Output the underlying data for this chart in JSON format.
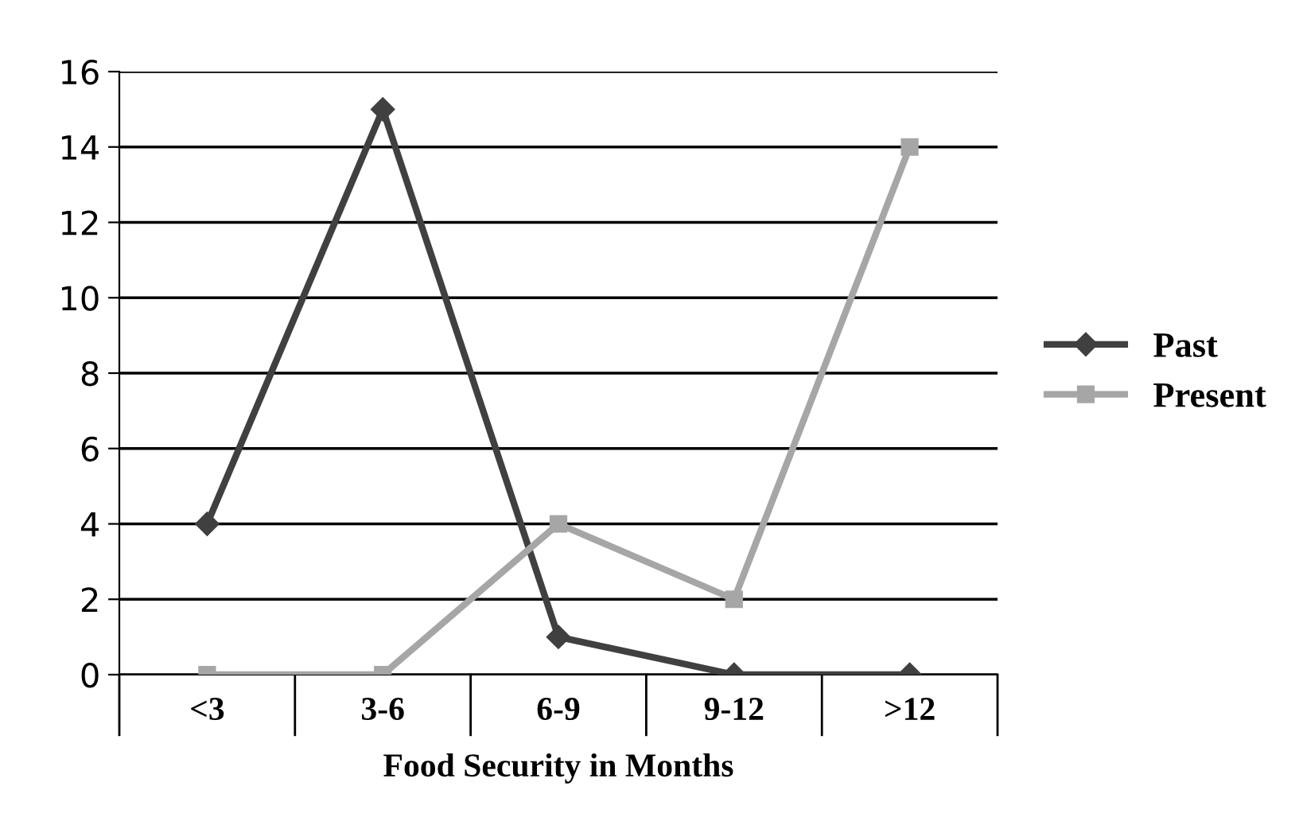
{
  "chart_data": {
    "type": "line",
    "xlabel": "Food Security in Months",
    "categories": [
      "<3",
      "3-6",
      "6-9",
      "9-12",
      ">12"
    ],
    "series": [
      {
        "name": "Past",
        "color": "#404040",
        "marker": "diamond",
        "values": [
          4,
          15,
          1,
          0,
          0
        ]
      },
      {
        "name": "Present",
        "color": "#a6a6a6",
        "marker": "square",
        "values": [
          0,
          0,
          4,
          2,
          14
        ]
      }
    ],
    "ylim": [
      0,
      16
    ],
    "yticks": [
      0,
      2,
      4,
      6,
      8,
      10,
      12,
      14,
      16
    ],
    "grid": "y",
    "legend": "right",
    "line_style": "solid"
  }
}
